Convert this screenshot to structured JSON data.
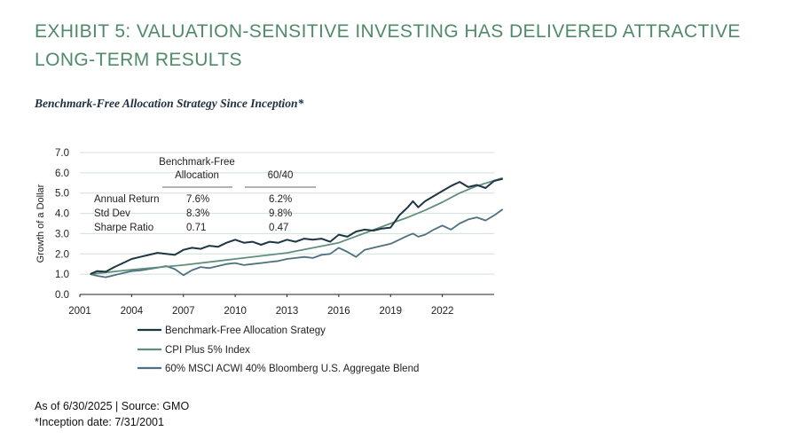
{
  "title": "EXHIBIT 5: VALUATION-SENSITIVE INVESTING HAS DELIVERED ATTRACTIVE LONG-TERM RESULTS",
  "subtitle": "Benchmark-Free Allocation Strategy Since Inception*",
  "footnote_source": "As of 6/30/2025 | Source: GMO",
  "footnote_inception": "*Inception date: 7/31/2001",
  "colors": {
    "title": "#4f8a6a",
    "bfa": "#1e3644",
    "cpi": "#5f8f7c",
    "blend": "#4e7080",
    "grid": "#cfe0da"
  },
  "stats_table": {
    "col_headers": [
      "Benchmark-Free Allocation",
      "60/40"
    ],
    "rows": [
      {
        "label": "Annual Return",
        "bfa": "7.6%",
        "sixty_forty": "6.2%"
      },
      {
        "label": "Std Dev",
        "bfa": "8.3%",
        "sixty_forty": "9.8%"
      },
      {
        "label": "Sharpe Ratio",
        "bfa": "0.71",
        "sixty_forty": "0.47"
      }
    ]
  },
  "chart_data": {
    "type": "line",
    "ylabel": "Growth of a Dollar",
    "xlabel": "",
    "ylim": [
      0,
      7
    ],
    "yticks": [
      "0.0",
      "1.0",
      "2.0",
      "3.0",
      "4.0",
      "5.0",
      "6.0",
      "7.0"
    ],
    "xlim": [
      2001,
      2025
    ],
    "xticks": [
      "2001",
      "2004",
      "2007",
      "2010",
      "2013",
      "2016",
      "2019",
      "2022"
    ],
    "grid": "horizontal",
    "legend_position": "bottom",
    "series": [
      {
        "name": "Benchmark-Free Allocation Srategy",
        "x": [
          2001.6,
          2002.0,
          2002.5,
          2003.0,
          2003.5,
          2004.0,
          2004.5,
          2005.0,
          2005.5,
          2006.0,
          2006.5,
          2007.0,
          2007.5,
          2008.0,
          2008.5,
          2009.0,
          2009.5,
          2010.0,
          2010.5,
          2011.0,
          2011.5,
          2012.0,
          2012.5,
          2013.0,
          2013.5,
          2014.0,
          2014.5,
          2015.0,
          2015.5,
          2016.0,
          2016.5,
          2017.0,
          2017.5,
          2018.0,
          2018.5,
          2019.0,
          2019.5,
          2020.0,
          2020.3,
          2020.6,
          2021.0,
          2021.5,
          2022.0,
          2022.5,
          2023.0,
          2023.5,
          2024.0,
          2024.5,
          2025.0,
          2025.5
        ],
        "y": [
          1.0,
          1.15,
          1.12,
          1.35,
          1.55,
          1.75,
          1.85,
          1.95,
          2.05,
          2.0,
          1.95,
          2.2,
          2.3,
          2.25,
          2.4,
          2.35,
          2.55,
          2.7,
          2.55,
          2.6,
          2.45,
          2.6,
          2.55,
          2.7,
          2.6,
          2.75,
          2.7,
          2.75,
          2.6,
          2.95,
          2.85,
          3.1,
          3.2,
          3.15,
          3.25,
          3.3,
          3.9,
          4.3,
          4.6,
          4.3,
          4.6,
          4.85,
          5.1,
          5.35,
          5.55,
          5.3,
          5.4,
          5.25,
          5.6,
          5.7
        ]
      },
      {
        "name": "CPI Plus 5% Index",
        "x": [
          2001.6,
          2004.0,
          2007.0,
          2010.0,
          2013.0,
          2016.0,
          2019.0,
          2020.0,
          2021.0,
          2022.0,
          2023.0,
          2024.0,
          2025.5
        ],
        "y": [
          1.0,
          1.22,
          1.45,
          1.75,
          2.05,
          2.55,
          3.5,
          3.8,
          4.15,
          4.55,
          5.0,
          5.35,
          5.75
        ]
      },
      {
        "name": "60% MSCI ACWI 40% Bloomberg U.S. Aggregate Blend",
        "x": [
          2001.6,
          2002.0,
          2002.5,
          2003.0,
          2003.5,
          2004.0,
          2004.5,
          2005.0,
          2005.5,
          2006.0,
          2006.5,
          2007.0,
          2007.5,
          2008.0,
          2008.5,
          2009.0,
          2009.5,
          2010.0,
          2010.5,
          2011.0,
          2011.5,
          2012.0,
          2012.5,
          2013.0,
          2013.5,
          2014.0,
          2014.5,
          2015.0,
          2015.5,
          2016.0,
          2016.5,
          2017.0,
          2017.5,
          2018.0,
          2018.5,
          2019.0,
          2019.5,
          2020.0,
          2020.3,
          2020.6,
          2021.0,
          2021.5,
          2022.0,
          2022.5,
          2023.0,
          2023.5,
          2024.0,
          2024.5,
          2025.0,
          2025.5
        ],
        "y": [
          1.0,
          0.92,
          0.85,
          0.95,
          1.05,
          1.15,
          1.18,
          1.25,
          1.32,
          1.4,
          1.25,
          0.95,
          1.2,
          1.35,
          1.3,
          1.4,
          1.5,
          1.55,
          1.45,
          1.5,
          1.55,
          1.6,
          1.65,
          1.75,
          1.8,
          1.85,
          1.8,
          1.95,
          2.0,
          2.3,
          2.1,
          1.85,
          2.2,
          2.3,
          2.4,
          2.5,
          2.7,
          2.9,
          3.0,
          2.85,
          2.95,
          3.2,
          3.4,
          3.2,
          3.5,
          3.7,
          3.8,
          3.65,
          3.9,
          4.2
        ]
      }
    ]
  }
}
